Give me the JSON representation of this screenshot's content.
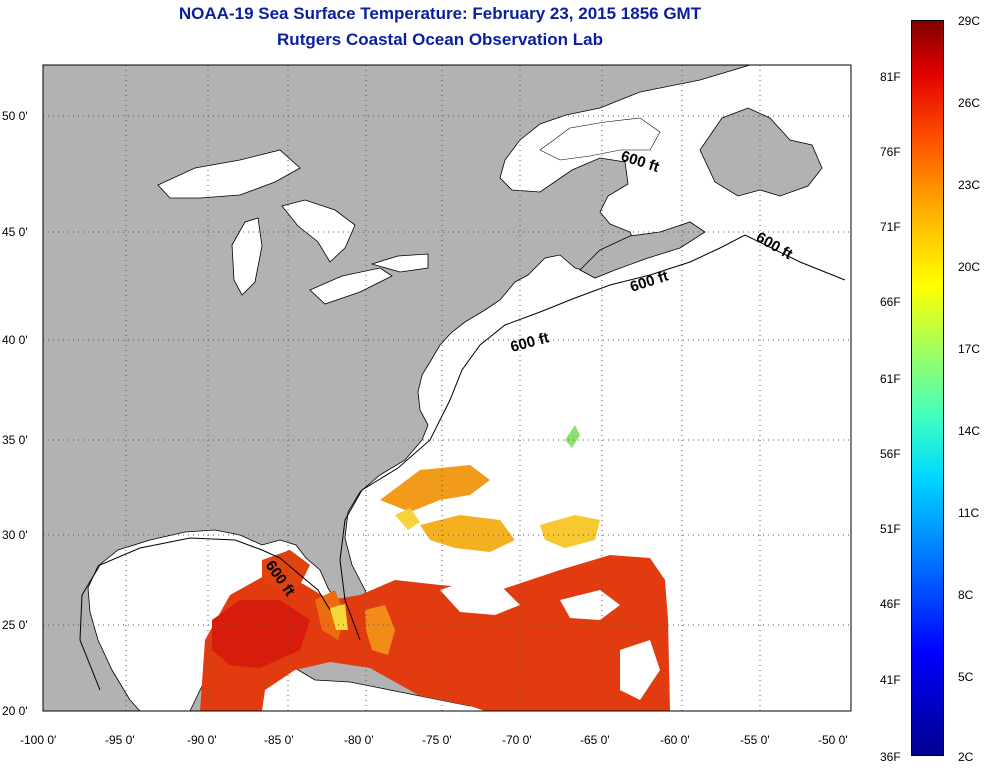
{
  "header": {
    "title": "NOAA-19 Sea Surface Temperature:  February 23, 2015 1856 GMT",
    "subtitle": "Rutgers Coastal Ocean Observation Lab"
  },
  "map": {
    "lon_ticks": [
      "-100 0'",
      "-95 0'",
      "-90 0'",
      "-85 0'",
      "-80 0'",
      "-75 0'",
      "-70 0'",
      "-65 0'",
      "-60 0'",
      "-55 0'",
      "-50 0'"
    ],
    "lat_ticks": [
      "50 0'",
      "45 0'",
      "40 0'",
      "35 0'",
      "30 0'",
      "25 0'",
      "20 0'"
    ],
    "contour_labels": [
      "600 ft",
      "600 ft",
      "600 ft",
      "600 ft",
      "600 ft"
    ],
    "colors": {
      "land": "#b2b2b2",
      "ocean": "#ffffff",
      "lakes_fill": "#ffffff"
    }
  },
  "colorbar": {
    "celsius": [
      "29C",
      "26C",
      "23C",
      "20C",
      "17C",
      "14C",
      "11C",
      "8C",
      "5C",
      "2C"
    ],
    "fahrenheit": [
      "81F",
      "76F",
      "71F",
      "66F",
      "61F",
      "56F",
      "51F",
      "46F",
      "41F",
      "36F"
    ]
  }
}
